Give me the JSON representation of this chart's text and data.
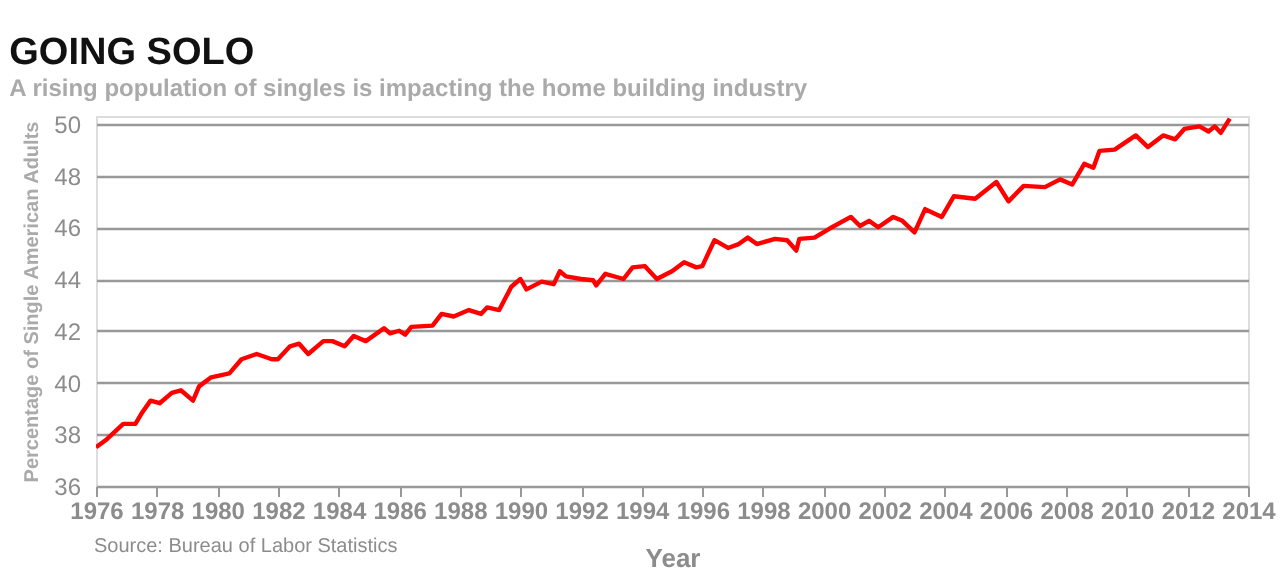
{
  "chart_data": {
    "type": "line",
    "title": "GOING SOLO",
    "subtitle": "A rising population of singles is impacting the home building industry",
    "xlabel": "Year",
    "ylabel": "Percentage of Single American Adults",
    "annotations": [
      "Source: Bureau of Labor Statistics"
    ],
    "x": [
      1976.0,
      1976.35,
      1976.9,
      1977.3,
      1977.5,
      1977.8,
      1978.1,
      1978.5,
      1978.8,
      1979.2,
      1979.4,
      1979.8,
      1980.4,
      1980.8,
      1981.3,
      1981.8,
      1982.0,
      1982.4,
      1982.7,
      1983.0,
      1983.5,
      1983.8,
      1984.2,
      1984.5,
      1984.9,
      1985.5,
      1985.7,
      1986.0,
      1986.2,
      1986.4,
      1987.1,
      1987.4,
      1987.8,
      1988.3,
      1988.7,
      1988.9,
      1989.3,
      1989.7,
      1990.0,
      1990.2,
      1990.7,
      1991.1,
      1991.3,
      1991.5,
      1992.0,
      1992.4,
      1992.5,
      1992.8,
      1993.4,
      1993.7,
      1994.1,
      1994.5,
      1995.0,
      1995.4,
      1995.8,
      1996.0,
      1996.4,
      1996.85,
      1997.2,
      1997.5,
      1997.8,
      1998.4,
      1998.8,
      1999.1,
      1999.2,
      1999.7,
      2000.2,
      2000.9,
      2001.2,
      2001.5,
      2001.8,
      2002.3,
      2002.6,
      2003.0,
      2003.35,
      2003.9,
      2004.3,
      2005.0,
      2005.7,
      2006.1,
      2006.6,
      2007.3,
      2007.8,
      2008.2,
      2008.6,
      2008.9,
      2009.1,
      2009.6,
      2010.3,
      2010.7,
      2011.2,
      2011.6,
      2011.9,
      2012.4,
      2012.7,
      2012.9,
      2013.1,
      2013.4
    ],
    "series": [
      {
        "color": "#ff0000",
        "values": [
          37.5,
          37.8,
          38.4,
          38.4,
          38.8,
          39.3,
          39.2,
          39.6,
          39.7,
          39.3,
          39.85,
          40.2,
          40.35,
          40.9,
          41.1,
          40.9,
          40.9,
          41.4,
          41.5,
          41.1,
          41.6,
          41.6,
          41.4,
          41.8,
          41.6,
          42.1,
          41.9,
          42.0,
          41.85,
          42.15,
          42.2,
          42.65,
          42.55,
          42.8,
          42.65,
          42.9,
          42.8,
          43.7,
          44.0,
          43.6,
          43.9,
          43.8,
          44.3,
          44.1,
          44.0,
          43.95,
          43.75,
          44.2,
          44.0,
          44.45,
          44.5,
          44.0,
          44.3,
          44.65,
          44.45,
          44.5,
          45.5,
          45.2,
          45.35,
          45.6,
          45.35,
          45.55,
          45.5,
          45.1,
          45.55,
          45.6,
          45.95,
          46.4,
          46.05,
          46.25,
          46.0,
          46.4,
          46.25,
          45.8,
          46.7,
          46.4,
          47.2,
          47.1,
          47.75,
          47.0,
          47.6,
          47.55,
          47.85,
          47.65,
          48.45,
          48.3,
          48.95,
          49.0,
          49.55,
          49.1,
          49.55,
          49.4,
          49.8,
          49.9,
          49.7,
          49.9,
          49.65,
          50.2
        ]
      }
    ],
    "xlim": [
      1976,
      2014
    ],
    "xticks": [
      1976,
      1978,
      1980,
      1982,
      1984,
      1986,
      1988,
      1990,
      1992,
      1994,
      1996,
      1998,
      2000,
      2002,
      2004,
      2006,
      2008,
      2010,
      2012,
      2014
    ],
    "ylim": [
      36,
      50.3
    ],
    "yticks": [
      36,
      38,
      40,
      42,
      44,
      46,
      48,
      50
    ],
    "grid": "y",
    "marker": "none",
    "line_style": "solid"
  }
}
